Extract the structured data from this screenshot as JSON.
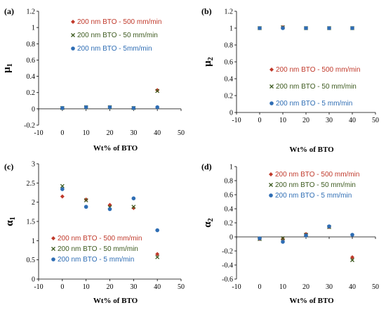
{
  "chart_data": [
    {
      "type": "scatter",
      "panel": "(a)",
      "ylabel": "μ",
      "ylabel_sub": "1",
      "xlabel": "Wt% of BTO",
      "xlim": [
        -10,
        50
      ],
      "ylim": [
        -0.2,
        1.2
      ],
      "xticks": [
        "-10",
        "0",
        "10",
        "20",
        "30",
        "40",
        "50"
      ],
      "yticks": [
        "-0.2",
        "0",
        "0.2",
        "0.4",
        "0.6",
        "0.8",
        "1",
        "1.2"
      ],
      "legend_position": "top-center",
      "x": [
        0,
        10,
        20,
        30,
        40
      ],
      "series": [
        {
          "name": "200 nm BTO - 500 mm/min",
          "color": "#c0392b",
          "marker": "diamond",
          "values": [
            0.01,
            0.02,
            0.02,
            0.01,
            0.23
          ]
        },
        {
          "name": "200 nm BTO - 50 mm/min",
          "color": "#3d5a1f",
          "marker": "x",
          "values": [
            0.01,
            0.02,
            0.02,
            0.01,
            0.22
          ]
        },
        {
          "name": "200 nm BTO - 5mm/min",
          "color": "#2e6db4",
          "marker": "circle",
          "values": [
            0.01,
            0.02,
            0.02,
            0.01,
            0.02
          ]
        }
      ]
    },
    {
      "type": "scatter",
      "panel": "(b)",
      "ylabel": "μ",
      "ylabel_sub": "2",
      "xlabel": "Wt% of BTO",
      "xlim": [
        -10,
        50
      ],
      "ylim": [
        0,
        1.2
      ],
      "xticks": [
        "-10",
        "0",
        "10",
        "20",
        "30",
        "40",
        "50"
      ],
      "yticks": [
        "0",
        "0.2",
        "0.4",
        "0.6",
        "0.8",
        "1",
        "1.2"
      ],
      "legend_position": "center",
      "x": [
        0,
        10,
        20,
        30,
        40
      ],
      "series": [
        {
          "name": "200 nm BTO - 500 mm/min",
          "color": "#c0392b",
          "marker": "diamond",
          "values": [
            1.0,
            1.01,
            1.0,
            1.0,
            1.0
          ]
        },
        {
          "name": "200 nm BTO - 50 mm/min",
          "color": "#3d5a1f",
          "marker": "x",
          "values": [
            1.0,
            1.01,
            1.0,
            1.0,
            1.0
          ]
        },
        {
          "name": "200 nm BTO - 5 mm/min",
          "color": "#2e6db4",
          "marker": "circle",
          "values": [
            1.0,
            1.0,
            1.0,
            1.0,
            1.0
          ]
        }
      ]
    },
    {
      "type": "scatter",
      "panel": "(c)",
      "ylabel": "α",
      "ylabel_sub": "1",
      "xlabel": "Wt% of BTO",
      "xlim": [
        -10,
        50
      ],
      "ylim": [
        0,
        3
      ],
      "xticks": [
        "-10",
        "0",
        "10",
        "20",
        "30",
        "40",
        "50"
      ],
      "yticks": [
        "0",
        "0.5",
        "1",
        "1.5",
        "2",
        "2.5",
        "3"
      ],
      "legend_position": "bottom-left",
      "x": [
        0,
        10,
        20,
        30,
        40
      ],
      "series": [
        {
          "name": "200 nm BTO - 500 mm/min",
          "color": "#c0392b",
          "marker": "diamond",
          "values": [
            2.15,
            2.07,
            1.93,
            1.85,
            0.65
          ]
        },
        {
          "name": "200 nm BTO - 50 mm/min",
          "color": "#3d5a1f",
          "marker": "x",
          "values": [
            2.42,
            2.05,
            1.87,
            1.88,
            0.57
          ]
        },
        {
          "name": "200 nm BTO - 5 mm/min",
          "color": "#2e6db4",
          "marker": "circle",
          "values": [
            2.34,
            1.88,
            1.82,
            2.1,
            1.27
          ]
        }
      ]
    },
    {
      "type": "scatter",
      "panel": "(d)",
      "ylabel": "α",
      "ylabel_sub": "2",
      "xlabel": "Wt% of BTO",
      "xlim": [
        -10,
        50
      ],
      "ylim": [
        -0.6,
        1
      ],
      "xticks": [
        "-10",
        "0",
        "10",
        "20",
        "30",
        "40",
        "50"
      ],
      "yticks": [
        "-0.6",
        "-0.4",
        "-0.2",
        "0",
        "0.2",
        "0.4",
        "0.6",
        "0.8",
        "1"
      ],
      "legend_position": "top-center",
      "x": [
        0,
        10,
        20,
        30,
        40
      ],
      "series": [
        {
          "name": "200 nm BTO - 500 mm/min",
          "color": "#c0392b",
          "marker": "diamond",
          "values": [
            -0.03,
            -0.03,
            0.04,
            0.14,
            -0.29
          ]
        },
        {
          "name": "200 nm BTO - 50 mm/min",
          "color": "#3d5a1f",
          "marker": "x",
          "values": [
            -0.03,
            -0.02,
            0.03,
            0.14,
            -0.33
          ]
        },
        {
          "name": "200 nm BTO - 5 mm/min",
          "color": "#2e6db4",
          "marker": "circle",
          "values": [
            -0.02,
            -0.07,
            0.02,
            0.15,
            0.03
          ]
        }
      ]
    }
  ]
}
